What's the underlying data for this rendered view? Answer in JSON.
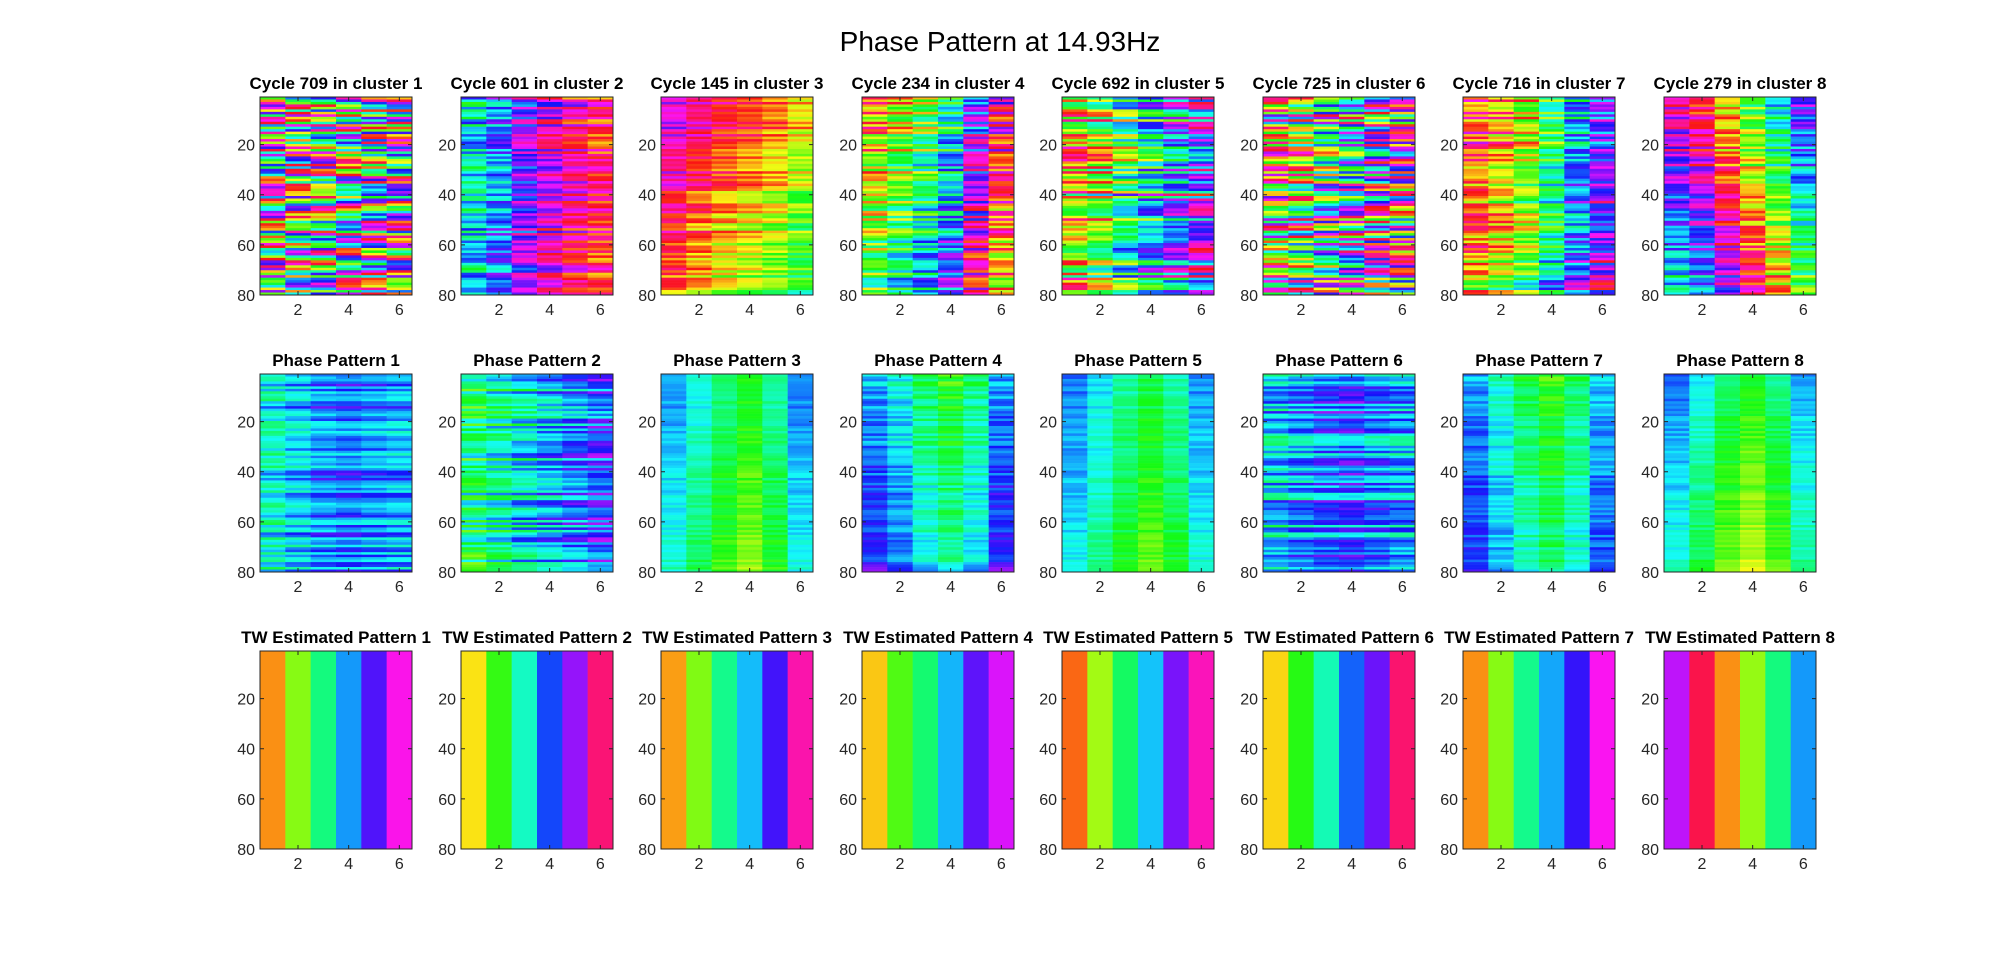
{
  "figure": {
    "title": "Phase Pattern at 14.93Hz"
  },
  "colors": {
    "axis": "#262626",
    "background": "#ffffff"
  },
  "chart_data": [
    {
      "type": "heatmap",
      "title": "Cycle 709 in cluster 1",
      "row": 1,
      "col": 1,
      "mode": "noisy",
      "phases": [
        0.08,
        0.33,
        0.46,
        0.66,
        0.83,
        0.95
      ],
      "slope": 0.0,
      "noise": 0.45,
      "xticks": [
        2,
        4,
        6
      ],
      "yticks": [
        20,
        40,
        60,
        80
      ],
      "xlim": [
        0.5,
        6.5
      ],
      "ylim": [
        1,
        80
      ]
    },
    {
      "type": "heatmap",
      "title": "Cycle 601 in cluster 2",
      "row": 1,
      "col": 2,
      "mode": "noisy",
      "phases": [
        0.5,
        0.6,
        0.75,
        0.84,
        0.92,
        0.98
      ],
      "slope": 0.0,
      "noise": 0.18,
      "xticks": [
        2,
        4,
        6
      ],
      "yticks": [
        20,
        40,
        60,
        80
      ],
      "xlim": [
        0.5,
        6.5
      ],
      "ylim": [
        1,
        80
      ]
    },
    {
      "type": "heatmap",
      "title": "Cycle 145 in cluster 3",
      "row": 1,
      "col": 3,
      "mode": "noisy",
      "phases": [
        0.78,
        0.86,
        0.93,
        0.97,
        0.02,
        0.1
      ],
      "slope": 0.3,
      "noise": 0.12,
      "xticks": [
        2,
        4,
        6
      ],
      "yticks": [
        20,
        40,
        60,
        80
      ],
      "xlim": [
        0.5,
        6.5
      ],
      "ylim": [
        1,
        80
      ]
    },
    {
      "type": "heatmap",
      "title": "Cycle 234 in cluster 4",
      "row": 1,
      "col": 4,
      "mode": "noisy",
      "phases": [
        0.06,
        0.16,
        0.26,
        0.4,
        0.66,
        0.86
      ],
      "slope": 0.3,
      "noise": 0.2,
      "xticks": [
        2,
        4,
        6
      ],
      "yticks": [
        20,
        40,
        60,
        80
      ],
      "xlim": [
        0.5,
        6.5
      ],
      "ylim": [
        1,
        80
      ]
    },
    {
      "type": "heatmap",
      "title": "Cycle 692 in cluster 5",
      "row": 1,
      "col": 5,
      "mode": "noisy",
      "phases": [
        0.15,
        0.25,
        0.38,
        0.5,
        0.6,
        0.72
      ],
      "slope": 0.0,
      "noise": 0.3,
      "xticks": [
        2,
        4,
        6
      ],
      "yticks": [
        20,
        40,
        60,
        80
      ],
      "xlim": [
        0.5,
        6.5
      ],
      "ylim": [
        1,
        80
      ]
    },
    {
      "type": "heatmap",
      "title": "Cycle 725 in cluster 6",
      "row": 1,
      "col": 6,
      "mode": "noisy",
      "phases": [
        0.12,
        0.25,
        0.42,
        0.58,
        0.76,
        0.92
      ],
      "slope": 0.0,
      "noise": 0.4,
      "xticks": [
        2,
        4,
        6
      ],
      "yticks": [
        20,
        40,
        60,
        80
      ],
      "xlim": [
        0.5,
        6.5
      ],
      "ylim": [
        1,
        80
      ]
    },
    {
      "type": "heatmap",
      "title": "Cycle 716 in cluster 7",
      "row": 1,
      "col": 7,
      "mode": "noisy",
      "phases": [
        0.95,
        0.04,
        0.14,
        0.3,
        0.48,
        0.62
      ],
      "slope": 0.22,
      "noise": 0.2,
      "xticks": [
        2,
        4,
        6
      ],
      "yticks": [
        20,
        40,
        60,
        80
      ],
      "xlim": [
        0.5,
        6.5
      ],
      "ylim": [
        1,
        80
      ]
    },
    {
      "type": "heatmap",
      "title": "Cycle 279 in cluster 8",
      "row": 1,
      "col": 8,
      "mode": "noisy",
      "phases": [
        0.9,
        0.0,
        0.18,
        0.35,
        0.52,
        0.72
      ],
      "slope": -0.45,
      "noise": 0.15,
      "xticks": [
        2,
        4,
        6
      ],
      "yticks": [
        20,
        40,
        60,
        80
      ],
      "xlim": [
        0.5,
        6.5
      ],
      "ylim": [
        1,
        80
      ]
    },
    {
      "type": "heatmap",
      "title": "Phase Pattern 1",
      "row": 2,
      "col": 1,
      "mode": "noisy",
      "phases": [
        0.5,
        0.55,
        0.6,
        0.62,
        0.6,
        0.58
      ],
      "slope": 0.0,
      "noise": 0.12,
      "xticks": [
        2,
        4,
        6
      ],
      "yticks": [
        20,
        40,
        60,
        80
      ],
      "xlim": [
        0.5,
        6.5
      ],
      "ylim": [
        1,
        80
      ]
    },
    {
      "type": "heatmap",
      "title": "Phase Pattern 2",
      "row": 2,
      "col": 2,
      "mode": "noisy",
      "phases": [
        0.4,
        0.45,
        0.5,
        0.55,
        0.6,
        0.65
      ],
      "slope": 0.0,
      "noise": 0.15,
      "xticks": [
        2,
        4,
        6
      ],
      "yticks": [
        20,
        40,
        60,
        80
      ],
      "xlim": [
        0.5,
        6.5
      ],
      "ylim": [
        1,
        80
      ]
    },
    {
      "type": "heatmap",
      "title": "Phase Pattern 3",
      "row": 2,
      "col": 3,
      "mode": "noisy",
      "phases": [
        0.58,
        0.5,
        0.42,
        0.36,
        0.45,
        0.6
      ],
      "slope": -0.12,
      "noise": 0.04,
      "xticks": [
        2,
        4,
        6
      ],
      "yticks": [
        20,
        40,
        60,
        80
      ],
      "xlim": [
        0.5,
        6.5
      ],
      "ylim": [
        1,
        80
      ]
    },
    {
      "type": "heatmap",
      "title": "Phase Pattern 4",
      "row": 2,
      "col": 4,
      "mode": "noisy",
      "phases": [
        0.55,
        0.48,
        0.38,
        0.32,
        0.4,
        0.56
      ],
      "slope": 0.14,
      "noise": 0.07,
      "xticks": [
        2,
        4,
        6
      ],
      "yticks": [
        20,
        40,
        60,
        80
      ],
      "xlim": [
        0.5,
        6.5
      ],
      "ylim": [
        1,
        80
      ]
    },
    {
      "type": "heatmap",
      "title": "Phase Pattern 5",
      "row": 2,
      "col": 5,
      "mode": "noisy",
      "phases": [
        0.6,
        0.52,
        0.44,
        0.38,
        0.45,
        0.58
      ],
      "slope": -0.1,
      "noise": 0.04,
      "xticks": [
        2,
        4,
        6
      ],
      "yticks": [
        20,
        40,
        60,
        80
      ],
      "xlim": [
        0.5,
        6.5
      ],
      "ylim": [
        1,
        80
      ]
    },
    {
      "type": "heatmap",
      "title": "Phase Pattern 6",
      "row": 2,
      "col": 6,
      "mode": "noisy",
      "phases": [
        0.52,
        0.56,
        0.6,
        0.62,
        0.58,
        0.55
      ],
      "slope": 0.0,
      "noise": 0.15,
      "xticks": [
        2,
        4,
        6
      ],
      "yticks": [
        20,
        40,
        60,
        80
      ],
      "xlim": [
        0.5,
        6.5
      ],
      "ylim": [
        1,
        80
      ]
    },
    {
      "type": "heatmap",
      "title": "Phase Pattern 7",
      "row": 2,
      "col": 7,
      "mode": "noisy",
      "phases": [
        0.55,
        0.45,
        0.36,
        0.3,
        0.38,
        0.52
      ],
      "slope": 0.12,
      "noise": 0.06,
      "xticks": [
        2,
        4,
        6
      ],
      "yticks": [
        20,
        40,
        60,
        80
      ],
      "xlim": [
        0.5,
        6.5
      ],
      "ylim": [
        1,
        80
      ]
    },
    {
      "type": "heatmap",
      "title": "Phase Pattern 8",
      "row": 2,
      "col": 8,
      "mode": "noisy",
      "phases": [
        0.6,
        0.5,
        0.4,
        0.34,
        0.42,
        0.56
      ],
      "slope": -0.14,
      "noise": 0.04,
      "xticks": [
        2,
        4,
        6
      ],
      "yticks": [
        20,
        40,
        60,
        80
      ],
      "xlim": [
        0.5,
        6.5
      ],
      "ylim": [
        1,
        80
      ]
    },
    {
      "type": "heatmap",
      "title": "TW Estimated Pattern 1",
      "row": 3,
      "col": 1,
      "mode": "stripes",
      "phases": [
        0.09,
        0.25,
        0.41,
        0.57,
        0.71,
        0.845
      ],
      "xticks": [
        2,
        4,
        6
      ],
      "yticks": [
        20,
        40,
        60,
        80
      ],
      "xlim": [
        0.5,
        6.5
      ],
      "ylim": [
        1,
        80
      ]
    },
    {
      "type": "heatmap",
      "title": "TW Estimated Pattern 2",
      "row": 3,
      "col": 2,
      "mode": "stripes",
      "phases": [
        0.15,
        0.31,
        0.46,
        0.63,
        0.76,
        0.93
      ],
      "xticks": [
        2,
        4,
        6
      ],
      "yticks": [
        20,
        40,
        60,
        80
      ],
      "xlim": [
        0.5,
        6.5
      ],
      "ylim": [
        1,
        80
      ]
    },
    {
      "type": "heatmap",
      "title": "TW Estimated Pattern 3",
      "row": 3,
      "col": 3,
      "mode": "stripes",
      "phases": [
        0.1,
        0.255,
        0.42,
        0.545,
        0.7,
        0.89
      ],
      "xticks": [
        2,
        4,
        6
      ],
      "yticks": [
        20,
        40,
        60,
        80
      ],
      "xlim": [
        0.5,
        6.5
      ],
      "ylim": [
        1,
        80
      ]
    },
    {
      "type": "heatmap",
      "title": "TW Estimated Pattern 4",
      "row": 3,
      "col": 4,
      "mode": "stripes",
      "phases": [
        0.13,
        0.29,
        0.4,
        0.55,
        0.72,
        0.81
      ],
      "xticks": [
        2,
        4,
        6
      ],
      "yticks": [
        20,
        40,
        60,
        80
      ],
      "xlim": [
        0.5,
        6.5
      ],
      "ylim": [
        1,
        80
      ]
    },
    {
      "type": "heatmap",
      "title": "TW Estimated Pattern 5",
      "row": 3,
      "col": 5,
      "mode": "stripes",
      "phases": [
        0.06,
        0.23,
        0.39,
        0.54,
        0.74,
        0.88
      ],
      "xticks": [
        2,
        4,
        6
      ],
      "yticks": [
        20,
        40,
        60,
        80
      ],
      "xlim": [
        0.5,
        6.5
      ],
      "ylim": [
        1,
        80
      ]
    },
    {
      "type": "heatmap",
      "title": "TW Estimated Pattern 6",
      "row": 3,
      "col": 6,
      "mode": "stripes",
      "phases": [
        0.14,
        0.32,
        0.45,
        0.61,
        0.73,
        0.935
      ],
      "xticks": [
        2,
        4,
        6
      ],
      "yticks": [
        20,
        40,
        60,
        80
      ],
      "xlim": [
        0.5,
        6.5
      ],
      "ylim": [
        1,
        80
      ]
    },
    {
      "type": "heatmap",
      "title": "TW Estimated Pattern 7",
      "row": 3,
      "col": 7,
      "mode": "stripes",
      "phases": [
        0.09,
        0.25,
        0.42,
        0.56,
        0.69,
        0.84
      ],
      "xticks": [
        2,
        4,
        6
      ],
      "yticks": [
        20,
        40,
        60,
        80
      ],
      "xlim": [
        0.5,
        6.5
      ],
      "ylim": [
        1,
        80
      ]
    },
    {
      "type": "heatmap",
      "title": "TW Estimated Pattern 8",
      "row": 3,
      "col": 8,
      "mode": "stripes",
      "phases": [
        0.79,
        0.96,
        0.09,
        0.24,
        0.41,
        0.57
      ],
      "xticks": [
        2,
        4,
        6
      ],
      "yticks": [
        20,
        40,
        60,
        80
      ],
      "xlim": [
        0.5,
        6.5
      ],
      "ylim": [
        1,
        80
      ]
    }
  ]
}
